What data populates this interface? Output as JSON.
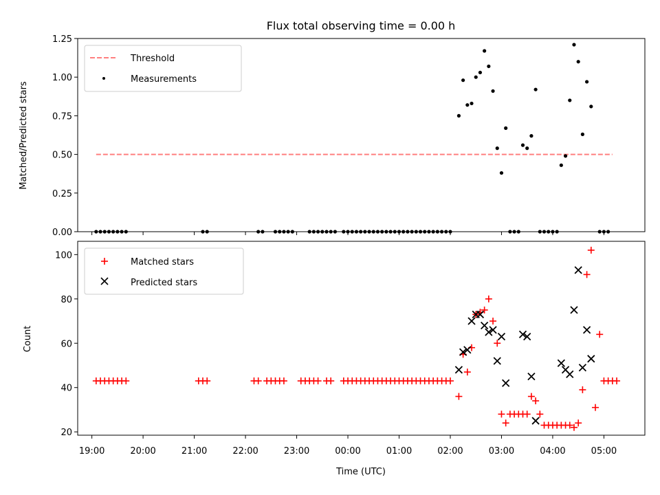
{
  "title": "Flux total observing time = 0.00 h",
  "xlabel": "Time (UTC)",
  "x_ticks": [
    "19:00",
    "20:00",
    "21:00",
    "22:00",
    "23:00",
    "00:00",
    "01:00",
    "02:00",
    "03:00",
    "04:00",
    "05:00"
  ],
  "colors": {
    "threshold": "#ff7f7f",
    "measurements": "#000000",
    "matched": "#ff0000",
    "predicted": "#000000"
  },
  "chart_data": [
    {
      "type": "scatter",
      "panel": "top",
      "ylabel": "Matched/Predicted stars",
      "ylim": [
        0,
        1.25
      ],
      "y_ticks": [
        "0.00",
        "0.25",
        "0.50",
        "0.75",
        "1.00",
        "1.25"
      ],
      "legend": {
        "placement": "top-left",
        "entries": [
          "Threshold",
          "Measurements"
        ]
      },
      "threshold": {
        "name": "Threshold",
        "value": 0.5,
        "x_start": "19:05",
        "x_end": "05:10",
        "style": "dashed"
      },
      "measurements": {
        "name": "Measurements",
        "points": [
          [
            "19:05",
            0
          ],
          [
            "19:10",
            0
          ],
          [
            "19:15",
            0
          ],
          [
            "19:20",
            0
          ],
          [
            "19:25",
            0
          ],
          [
            "19:30",
            0
          ],
          [
            "19:35",
            0
          ],
          [
            "19:40",
            0
          ],
          [
            "21:10",
            0
          ],
          [
            "21:15",
            0
          ],
          [
            "22:15",
            0
          ],
          [
            "22:20",
            0
          ],
          [
            "22:35",
            0
          ],
          [
            "22:40",
            0
          ],
          [
            "22:45",
            0
          ],
          [
            "22:50",
            0
          ],
          [
            "22:55",
            0
          ],
          [
            "23:15",
            0
          ],
          [
            "23:20",
            0
          ],
          [
            "23:25",
            0
          ],
          [
            "23:30",
            0
          ],
          [
            "23:35",
            0
          ],
          [
            "23:40",
            0
          ],
          [
            "23:45",
            0
          ],
          [
            "23:55",
            0
          ],
          [
            "00:00",
            0
          ],
          [
            "00:05",
            0
          ],
          [
            "00:10",
            0
          ],
          [
            "00:15",
            0
          ],
          [
            "00:20",
            0
          ],
          [
            "00:25",
            0
          ],
          [
            "00:30",
            0
          ],
          [
            "00:35",
            0
          ],
          [
            "00:40",
            0
          ],
          [
            "00:45",
            0
          ],
          [
            "00:50",
            0
          ],
          [
            "00:55",
            0
          ],
          [
            "01:00",
            0
          ],
          [
            "01:05",
            0
          ],
          [
            "01:10",
            0
          ],
          [
            "01:15",
            0
          ],
          [
            "01:20",
            0
          ],
          [
            "01:25",
            0
          ],
          [
            "01:30",
            0
          ],
          [
            "01:35",
            0
          ],
          [
            "01:40",
            0
          ],
          [
            "01:45",
            0
          ],
          [
            "01:50",
            0
          ],
          [
            "01:55",
            0
          ],
          [
            "02:00",
            0
          ],
          [
            "02:10",
            0.75
          ],
          [
            "02:15",
            0.98
          ],
          [
            "02:20",
            0.82
          ],
          [
            "02:25",
            0.83
          ],
          [
            "02:30",
            1.0
          ],
          [
            "02:35",
            1.03
          ],
          [
            "02:40",
            1.17
          ],
          [
            "02:45",
            1.07
          ],
          [
            "02:50",
            0.91
          ],
          [
            "02:55",
            0.54
          ],
          [
            "03:00",
            0.38
          ],
          [
            "03:05",
            0.67
          ],
          [
            "03:10",
            0
          ],
          [
            "03:15",
            0
          ],
          [
            "03:20",
            0
          ],
          [
            "03:25",
            0.56
          ],
          [
            "03:30",
            0.54
          ],
          [
            "03:35",
            0.62
          ],
          [
            "03:40",
            0.92
          ],
          [
            "03:45",
            0
          ],
          [
            "03:50",
            0
          ],
          [
            "03:55",
            0
          ],
          [
            "04:00",
            0
          ],
          [
            "04:05",
            0
          ],
          [
            "04:10",
            0.43
          ],
          [
            "04:15",
            0.49
          ],
          [
            "04:20",
            0.85
          ],
          [
            "04:25",
            1.21
          ],
          [
            "04:30",
            1.1
          ],
          [
            "04:35",
            0.63
          ],
          [
            "04:40",
            0.97
          ],
          [
            "04:45",
            0.81
          ],
          [
            "04:55",
            0
          ],
          [
            "05:00",
            0
          ],
          [
            "05:05",
            0
          ]
        ]
      }
    },
    {
      "type": "scatter",
      "panel": "bottom",
      "ylabel": "Count",
      "ylim": [
        18.5,
        106
      ],
      "y_ticks": [
        "20",
        "40",
        "60",
        "80",
        "100"
      ],
      "legend": {
        "placement": "top-left",
        "entries": [
          "Matched stars",
          "Predicted stars"
        ]
      },
      "series": [
        {
          "name": "Matched stars",
          "marker": "plus",
          "points": [
            [
              "19:05",
              43
            ],
            [
              "19:10",
              43
            ],
            [
              "19:15",
              43
            ],
            [
              "19:20",
              43
            ],
            [
              "19:25",
              43
            ],
            [
              "19:30",
              43
            ],
            [
              "19:35",
              43
            ],
            [
              "19:40",
              43
            ],
            [
              "21:05",
              43
            ],
            [
              "21:10",
              43
            ],
            [
              "21:15",
              43
            ],
            [
              "22:10",
              43
            ],
            [
              "22:15",
              43
            ],
            [
              "22:25",
              43
            ],
            [
              "22:30",
              43
            ],
            [
              "22:35",
              43
            ],
            [
              "22:40",
              43
            ],
            [
              "22:45",
              43
            ],
            [
              "23:05",
              43
            ],
            [
              "23:10",
              43
            ],
            [
              "23:15",
              43
            ],
            [
              "23:20",
              43
            ],
            [
              "23:25",
              43
            ],
            [
              "23:35",
              43
            ],
            [
              "23:40",
              43
            ],
            [
              "23:55",
              43
            ],
            [
              "00:00",
              43
            ],
            [
              "00:05",
              43
            ],
            [
              "00:10",
              43
            ],
            [
              "00:15",
              43
            ],
            [
              "00:20",
              43
            ],
            [
              "00:25",
              43
            ],
            [
              "00:30",
              43
            ],
            [
              "00:35",
              43
            ],
            [
              "00:40",
              43
            ],
            [
              "00:45",
              43
            ],
            [
              "00:50",
              43
            ],
            [
              "00:55",
              43
            ],
            [
              "01:00",
              43
            ],
            [
              "01:05",
              43
            ],
            [
              "01:10",
              43
            ],
            [
              "01:15",
              43
            ],
            [
              "01:20",
              43
            ],
            [
              "01:25",
              43
            ],
            [
              "01:30",
              43
            ],
            [
              "01:35",
              43
            ],
            [
              "01:40",
              43
            ],
            [
              "01:45",
              43
            ],
            [
              "01:50",
              43
            ],
            [
              "01:55",
              43
            ],
            [
              "02:00",
              43
            ],
            [
              "02:10",
              36
            ],
            [
              "02:15",
              55
            ],
            [
              "02:20",
              47
            ],
            [
              "02:25",
              58
            ],
            [
              "02:30",
              73
            ],
            [
              "02:35",
              74
            ],
            [
              "02:40",
              75
            ],
            [
              "02:45",
              80
            ],
            [
              "02:50",
              70
            ],
            [
              "02:55",
              60
            ],
            [
              "03:00",
              28
            ],
            [
              "03:05",
              24
            ],
            [
              "03:10",
              28
            ],
            [
              "03:15",
              28
            ],
            [
              "03:20",
              28
            ],
            [
              "03:25",
              28
            ],
            [
              "03:30",
              28
            ],
            [
              "03:35",
              36
            ],
            [
              "03:40",
              34
            ],
            [
              "03:45",
              28
            ],
            [
              "03:50",
              23
            ],
            [
              "03:55",
              23
            ],
            [
              "04:00",
              23
            ],
            [
              "04:05",
              23
            ],
            [
              "04:10",
              23
            ],
            [
              "04:15",
              23
            ],
            [
              "04:20",
              23
            ],
            [
              "04:25",
              22
            ],
            [
              "04:30",
              24
            ],
            [
              "04:35",
              39
            ],
            [
              "04:40",
              91
            ],
            [
              "04:45",
              102
            ],
            [
              "04:50",
              31
            ],
            [
              "04:55",
              64
            ],
            [
              "05:00",
              43
            ],
            [
              "05:05",
              43
            ],
            [
              "05:10",
              43
            ],
            [
              "05:15",
              43
            ]
          ]
        },
        {
          "name": "Predicted stars",
          "marker": "x",
          "points": [
            [
              "02:10",
              48
            ],
            [
              "02:15",
              56
            ],
            [
              "02:20",
              57
            ],
            [
              "02:25",
              70
            ],
            [
              "02:30",
              73
            ],
            [
              "02:35",
              73
            ],
            [
              "02:40",
              68
            ],
            [
              "02:45",
              65
            ],
            [
              "02:50",
              66
            ],
            [
              "02:55",
              52
            ],
            [
              "03:00",
              63
            ],
            [
              "03:05",
              42
            ],
            [
              "03:25",
              64
            ],
            [
              "03:30",
              63
            ],
            [
              "03:35",
              45
            ],
            [
              "03:40",
              25
            ],
            [
              "04:10",
              51
            ],
            [
              "04:15",
              48
            ],
            [
              "04:20",
              46
            ],
            [
              "04:25",
              75
            ],
            [
              "04:30",
              93
            ],
            [
              "04:35",
              49
            ],
            [
              "04:40",
              66
            ],
            [
              "04:45",
              53
            ]
          ]
        }
      ]
    }
  ]
}
